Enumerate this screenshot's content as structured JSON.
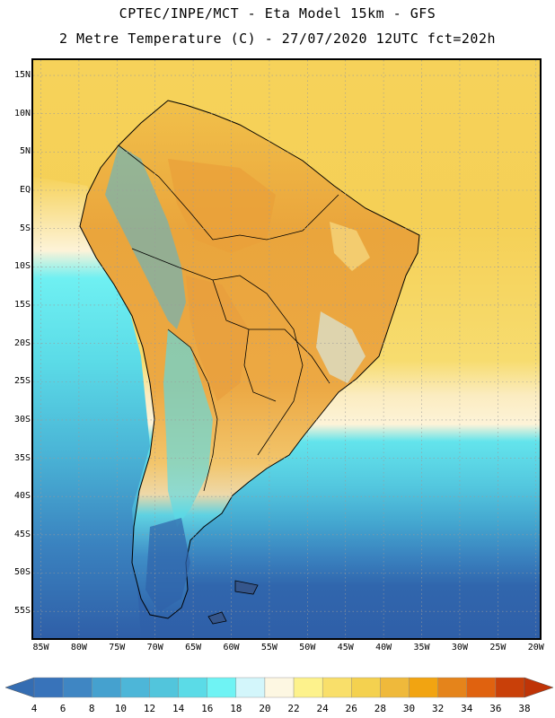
{
  "title": {
    "line1": "CPTEC/INPE/MCT -  Eta Model 15km - GFS",
    "line2": "2 Metre Temperature (C) - 27/07/2020 12UTC fct=202h"
  },
  "lat_ticks": [
    {
      "label": "15N",
      "value": 15
    },
    {
      "label": "10N",
      "value": 10
    },
    {
      "label": "5N",
      "value": 5
    },
    {
      "label": "EQ",
      "value": 0
    },
    {
      "label": "5S",
      "value": -5
    },
    {
      "label": "10S",
      "value": -10
    },
    {
      "label": "15S",
      "value": -15
    },
    {
      "label": "20S",
      "value": -20
    },
    {
      "label": "25S",
      "value": -25
    },
    {
      "label": "30S",
      "value": -30
    },
    {
      "label": "35S",
      "value": -35
    },
    {
      "label": "40S",
      "value": -40
    },
    {
      "label": "45S",
      "value": -45
    },
    {
      "label": "50S",
      "value": -50
    },
    {
      "label": "55S",
      "value": -55
    }
  ],
  "lon_ticks": [
    {
      "label": "85W",
      "value": -85
    },
    {
      "label": "80W",
      "value": -80
    },
    {
      "label": "75W",
      "value": -75
    },
    {
      "label": "70W",
      "value": -70
    },
    {
      "label": "65W",
      "value": -65
    },
    {
      "label": "60W",
      "value": -60
    },
    {
      "label": "55W",
      "value": -55
    },
    {
      "label": "50W",
      "value": -50
    },
    {
      "label": "45W",
      "value": -45
    },
    {
      "label": "40W",
      "value": -40
    },
    {
      "label": "35W",
      "value": -35
    },
    {
      "label": "30W",
      "value": -30
    },
    {
      "label": "25W",
      "value": -25
    },
    {
      "label": "20W",
      "value": -20
    }
  ],
  "map_extent": {
    "lon_min": -86,
    "lon_max": -19.5,
    "lat_min": -58.5,
    "lat_max": 17
  },
  "colorbar": {
    "levels": [
      "4",
      "6",
      "8",
      "10",
      "12",
      "14",
      "16",
      "18",
      "20",
      "22",
      "24",
      "26",
      "28",
      "30",
      "32",
      "34",
      "36",
      "38"
    ],
    "colors": [
      "#3873ba",
      "#3f86c3",
      "#45a1cf",
      "#4db6d8",
      "#52c5dc",
      "#5bdbe7",
      "#6ff3f4",
      "#d3f6fb",
      "#fdf7e2",
      "#fdf28c",
      "#f9df6a",
      "#f4d14f",
      "#efb93b",
      "#f2a411",
      "#e5841b",
      "#e0620f",
      "#c94009"
    ],
    "under_color": "#356db2",
    "over_color": "#bf3407"
  },
  "palette": {
    "ocean_north": "#f6d25a",
    "land_warm": "#efb24a",
    "land_orange": "#eaa23c",
    "ocean_mid": "#f4cf55",
    "ocean_pale": "#fdf3d0",
    "ocean_cyan": "#5fe0ea",
    "ocean_blue": "#4ab4d6",
    "ocean_deep": "#3a7cbc",
    "southern_deep": "#2e60a8",
    "andes_cold": "#62d8e6",
    "gridline": "#9a9a9a",
    "border": "#000000"
  }
}
